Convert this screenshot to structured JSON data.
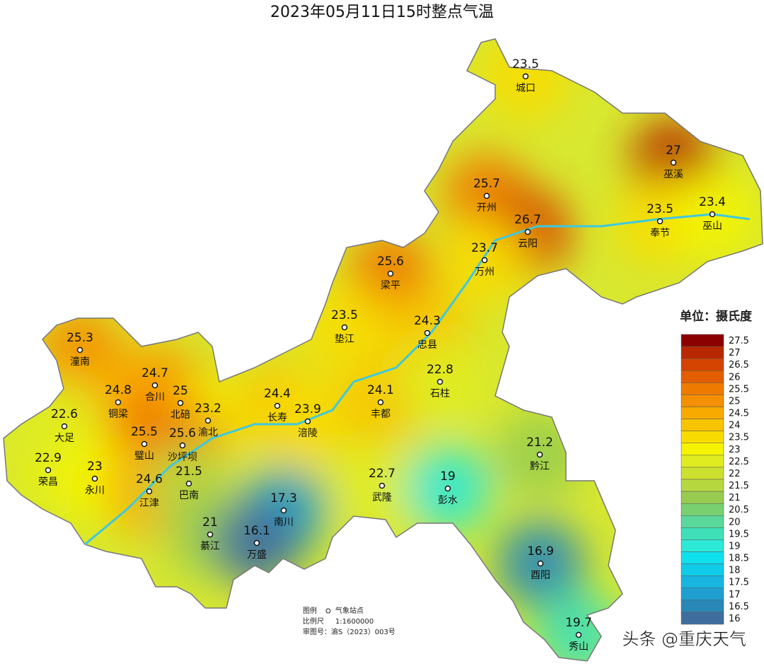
{
  "title": "2023年05月11日15时整点气温",
  "stations": [
    {
      "name": "城口",
      "value": 23.5
    },
    {
      "name": "巫溪",
      "value": 27
    },
    {
      "name": "开州",
      "value": 25.7
    },
    {
      "name": "云阳",
      "value": 26.7
    },
    {
      "name": "奉节",
      "value": 23.5
    },
    {
      "name": "巫山",
      "value": 23.4
    },
    {
      "name": "梁平",
      "value": 25.6
    },
    {
      "name": "万州",
      "value": 23.7
    },
    {
      "name": "垫江",
      "value": 23.5
    },
    {
      "name": "忠县",
      "value": 24.3
    },
    {
      "name": "潼南",
      "value": 25.3
    },
    {
      "name": "合川",
      "value": 24.7
    },
    {
      "name": "铜梁",
      "value": 24.8
    },
    {
      "name": "北碚",
      "value": 25
    },
    {
      "name": "渝北",
      "value": 23.2
    },
    {
      "name": "长寿",
      "value": 24.4
    },
    {
      "name": "涪陵",
      "value": 23.9
    },
    {
      "name": "丰都",
      "value": 24.1
    },
    {
      "name": "石柱",
      "value": 22.8
    },
    {
      "name": "大足",
      "value": 22.6
    },
    {
      "name": "璧山",
      "value": 25.5
    },
    {
      "name": "沙坪坝",
      "value": 25.6
    },
    {
      "name": "荣昌",
      "value": 22.9
    },
    {
      "name": "永川",
      "value": 23
    },
    {
      "name": "江津",
      "value": 24.6
    },
    {
      "name": "巴南",
      "value": 21.5
    },
    {
      "name": "黔江",
      "value": 21.2
    },
    {
      "name": "武隆",
      "value": 22.7
    },
    {
      "name": "彭水",
      "value": 19
    },
    {
      "name": "南川",
      "value": 17.3
    },
    {
      "name": "綦江",
      "value": 21
    },
    {
      "name": "万盛",
      "value": 16.1
    },
    {
      "name": "酉阳",
      "value": 16.9
    },
    {
      "name": "秀山",
      "value": 19.7
    }
  ],
  "legend": {
    "unit": "单位：摄氏度",
    "ticks": [
      27.5,
      27,
      26.5,
      26,
      25.5,
      25,
      24.5,
      24,
      23.5,
      23,
      22.5,
      22,
      21.5,
      21,
      20.5,
      20,
      19.5,
      19,
      18.5,
      18,
      17.5,
      17,
      16.5,
      16
    ],
    "colors": [
      "#8b0000",
      "#b82800",
      "#d44400",
      "#e25e00",
      "#ee7a00",
      "#f49000",
      "#f8aa00",
      "#f8c400",
      "#f8dc00",
      "#f4f400",
      "#e0ec20",
      "#cce030",
      "#b8d840",
      "#98cc50",
      "#78d070",
      "#5ad89a",
      "#3fe0b8",
      "#2ee8d8",
      "#10e0ee",
      "#10cce8",
      "#17b5e0",
      "#1f9fd0",
      "#2a88b8",
      "#3f6e9e"
    ]
  },
  "notes": {
    "legend_label": "图例",
    "station_label": "气象站点",
    "scale_label": "比例尺",
    "scale": "1:1600000",
    "approval": "审图号：渝S（2023）003号"
  },
  "watermark": "头条 @重庆天气"
}
